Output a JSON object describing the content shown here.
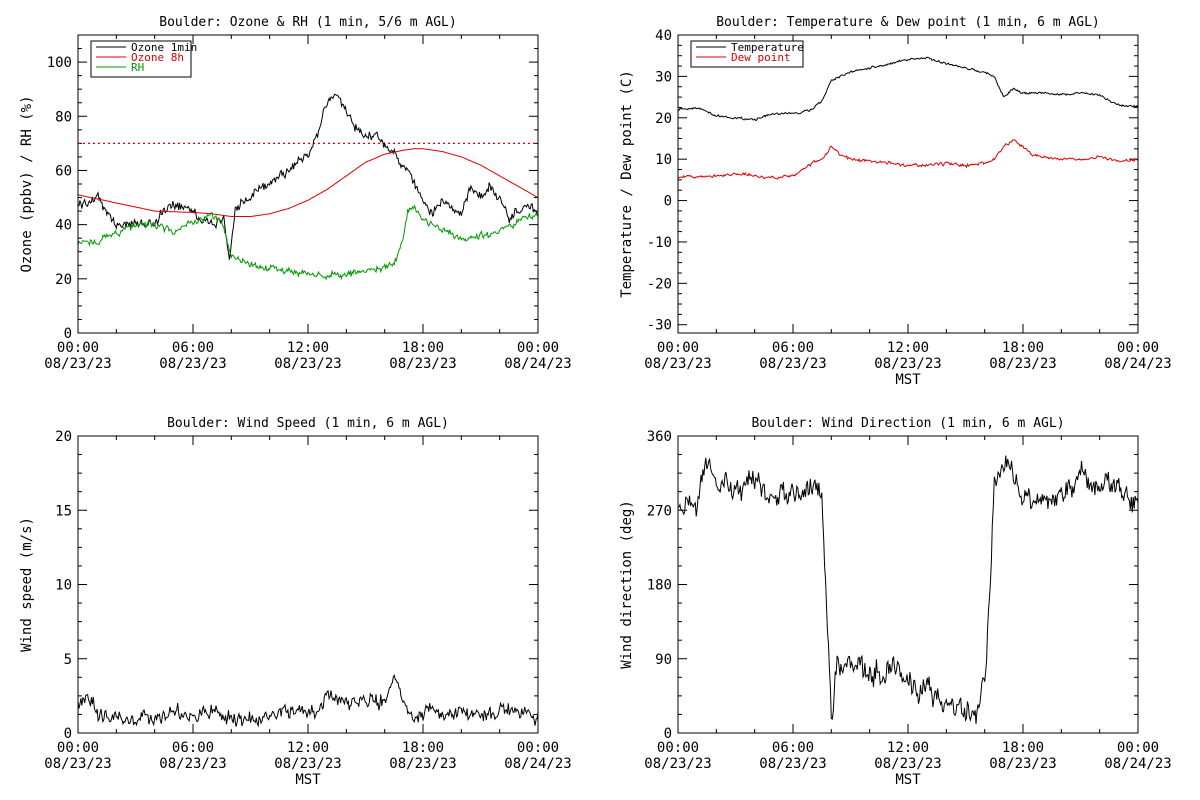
{
  "chart_data": [
    {
      "type": "line",
      "title": "Boulder: Ozone & RH (1 min, 5/6 m AGL)",
      "ylabel": "Ozone (ppbv) / RH (%)",
      "xlabel": "",
      "ylim": [
        0,
        110
      ],
      "yticks": [
        0,
        20,
        40,
        60,
        80,
        100
      ],
      "xticks": [
        [
          "00:00",
          "08/23/23"
        ],
        [
          "06:00",
          "08/23/23"
        ],
        [
          "12:00",
          "08/23/23"
        ],
        [
          "18:00",
          "08/23/23"
        ],
        [
          "00:00",
          "08/24/23"
        ]
      ],
      "grid": false,
      "legend_position": "top-left",
      "reference_line": {
        "y": 70,
        "style": "dotted",
        "color": "#dd0000"
      },
      "series": [
        {
          "name": "Ozone 1min",
          "color": "#000000",
          "noise": 2.2,
          "x": [
            0,
            1,
            2,
            3,
            4,
            5,
            6,
            6.5,
            7,
            7.6,
            7.9,
            8.2,
            9,
            10,
            11,
            12,
            12.5,
            13,
            13.5,
            14,
            14.5,
            15,
            15.5,
            16,
            16.5,
            17,
            17.5,
            18,
            18.5,
            19,
            20,
            20.5,
            21,
            21.5,
            22,
            22.5,
            23,
            23.5,
            24
          ],
          "y": [
            47,
            50,
            40,
            40,
            41,
            48,
            46,
            41,
            40,
            42,
            27,
            46,
            50,
            56,
            60,
            66,
            74,
            85,
            88,
            82,
            76,
            73,
            73,
            70,
            66,
            61,
            56,
            48,
            44,
            50,
            43,
            54,
            50,
            55,
            49,
            42,
            46,
            47,
            44
          ]
        },
        {
          "name": "Ozone 8h",
          "color": "#dd0000",
          "noise": 0,
          "x": [
            0,
            2,
            4,
            6,
            7,
            8,
            9,
            10,
            11,
            12,
            13,
            14,
            15,
            16,
            17,
            17.5,
            18,
            19,
            20,
            21,
            22,
            23,
            24
          ],
          "y": [
            51,
            48,
            45,
            44.5,
            44,
            43,
            43,
            44,
            46,
            49,
            53,
            58,
            63,
            66,
            67.5,
            68,
            68,
            67,
            65,
            62,
            58,
            54,
            50
          ]
        },
        {
          "name": "RH",
          "color": "#009900",
          "noise": 1.6,
          "x": [
            0,
            1,
            2,
            3,
            4,
            5,
            6,
            7,
            7.5,
            8,
            9,
            10,
            11,
            12,
            13,
            14,
            15,
            16,
            16.5,
            17,
            17.2,
            17.5,
            18,
            19,
            20,
            21,
            22,
            23,
            24
          ],
          "y": [
            33,
            34,
            37,
            40,
            40,
            37,
            41,
            43,
            41,
            28,
            25,
            24,
            23,
            22,
            21,
            22,
            23,
            24,
            26,
            36,
            45,
            46,
            42,
            38,
            35,
            36,
            37,
            42,
            44
          ]
        }
      ]
    },
    {
      "type": "line",
      "title": "Boulder: Temperature & Dew point (1 min, 6 m AGL)",
      "ylabel": "Temperature / Dew point (C)",
      "xlabel": "MST",
      "ylim": [
        -32,
        40
      ],
      "yticks": [
        -30,
        -20,
        -10,
        0,
        10,
        20,
        30,
        40
      ],
      "xticks": [
        [
          "00:00",
          "08/23/23"
        ],
        [
          "06:00",
          "08/23/23"
        ],
        [
          "12:00",
          "08/23/23"
        ],
        [
          "18:00",
          "08/23/23"
        ],
        [
          "00:00",
          "08/24/23"
        ]
      ],
      "grid": false,
      "legend_position": "top-left",
      "series": [
        {
          "name": "Temperature",
          "color": "#000000",
          "noise": 0.35,
          "x": [
            0,
            1,
            2,
            3,
            4,
            5,
            6,
            7,
            7.5,
            8,
            9,
            10,
            11,
            12,
            13,
            14,
            15,
            16,
            16.5,
            16.8,
            17,
            17.5,
            18,
            19,
            20,
            21,
            22,
            23,
            24
          ],
          "y": [
            22,
            22.5,
            20.5,
            20,
            19.5,
            21,
            21,
            22,
            24,
            29,
            31,
            32,
            33,
            34,
            34.5,
            33,
            32,
            31,
            30,
            27,
            25,
            27,
            26,
            26,
            25.5,
            26,
            25.5,
            23,
            22.5
          ]
        },
        {
          "name": "Dew point",
          "color": "#dd0000",
          "noise": 0.45,
          "x": [
            0,
            1,
            2,
            3,
            4,
            5,
            6,
            7,
            7.5,
            8,
            8.5,
            9,
            10,
            11,
            12,
            13,
            14,
            15,
            16,
            16.5,
            17,
            17.5,
            18,
            18.5,
            19,
            20,
            21,
            22,
            23,
            24
          ],
          "y": [
            5.5,
            6,
            6,
            6.5,
            6,
            5.5,
            6,
            9,
            10,
            13,
            11,
            10,
            9.5,
            9,
            8.5,
            8.5,
            9,
            8.5,
            9,
            10,
            13,
            14.5,
            13,
            11,
            10.5,
            10,
            10,
            10.5,
            9.5,
            10
          ]
        }
      ]
    },
    {
      "type": "line",
      "title": "Boulder: Wind Speed (1 min, 6 m AGL)",
      "ylabel": "Wind speed (m/s)",
      "xlabel": "MST",
      "ylim": [
        0,
        20
      ],
      "yticks": [
        0,
        5,
        10,
        15,
        20
      ],
      "xticks": [
        [
          "00:00",
          "08/23/23"
        ],
        [
          "06:00",
          "08/23/23"
        ],
        [
          "12:00",
          "08/23/23"
        ],
        [
          "18:00",
          "08/23/23"
        ],
        [
          "00:00",
          "08/24/23"
        ]
      ],
      "grid": false,
      "series": [
        {
          "name": "",
          "color": "#000000",
          "noise": 0.6,
          "x": [
            0,
            0.5,
            1,
            2,
            3,
            4,
            5,
            6,
            7,
            8,
            9,
            10,
            11,
            12,
            12.5,
            13,
            13.5,
            14,
            15,
            16,
            16.5,
            17,
            17.5,
            18,
            19,
            20,
            21,
            22,
            23,
            24
          ],
          "y": [
            2,
            2.5,
            1.2,
            1,
            0.8,
            1,
            1.5,
            1.2,
            1.5,
            1,
            0.8,
            1.2,
            1.5,
            1.4,
            1.2,
            2.8,
            2.5,
            1.8,
            2.5,
            2,
            4,
            2,
            0.8,
            1.5,
            1.2,
            1.5,
            1.2,
            1.5,
            1.6,
            1
          ]
        }
      ]
    },
    {
      "type": "line",
      "title": "Boulder: Wind Direction (1 min, 6 m AGL)",
      "ylabel": "Wind direction (deg)",
      "xlabel": "MST",
      "ylim": [
        0,
        360
      ],
      "yticks": [
        0,
        90,
        180,
        270,
        360
      ],
      "xticks": [
        [
          "00:00",
          "08/23/23"
        ],
        [
          "06:00",
          "08/23/23"
        ],
        [
          "12:00",
          "08/23/23"
        ],
        [
          "18:00",
          "08/23/23"
        ],
        [
          "00:00",
          "08/24/23"
        ]
      ],
      "grid": false,
      "series": [
        {
          "name": "",
          "color": "#000000",
          "noise": 18,
          "x": [
            0,
            0.5,
            1,
            1.5,
            2,
            3,
            4,
            5,
            6,
            7,
            7.5,
            8,
            8.3,
            9,
            10,
            11,
            12,
            13,
            14,
            15,
            15.5,
            16,
            16.3,
            16.5,
            17,
            18,
            19,
            20,
            21,
            22,
            23,
            24
          ],
          "y": [
            270,
            275,
            280,
            330,
            300,
            290,
            310,
            280,
            290,
            300,
            300,
            20,
            80,
            90,
            70,
            80,
            60,
            50,
            40,
            30,
            20,
            60,
            180,
            300,
            330,
            290,
            280,
            290,
            310,
            300,
            300,
            280
          ]
        }
      ]
    }
  ]
}
